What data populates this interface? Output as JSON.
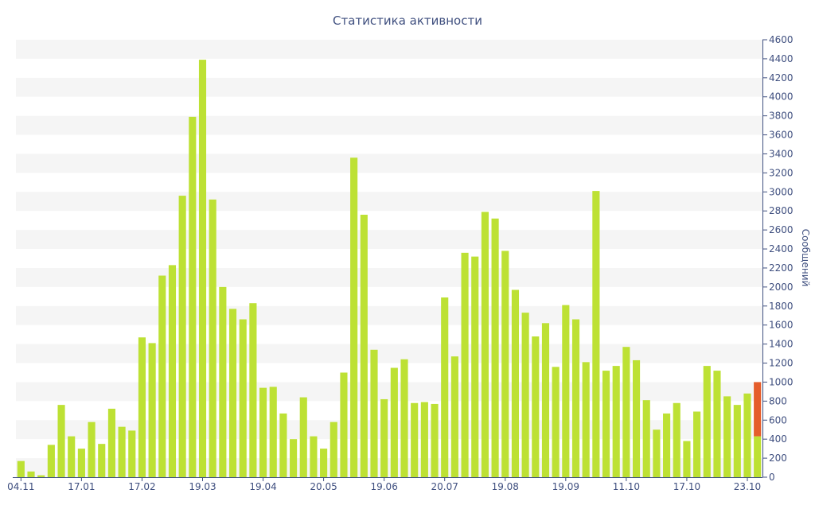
{
  "chart_data": {
    "type": "bar",
    "title": "Статистика активности",
    "ylabel": "Сообщений",
    "xlabel": "",
    "ylim": [
      0,
      4600
    ],
    "y_ticks": [
      0,
      200,
      400,
      600,
      800,
      1000,
      1200,
      1400,
      1600,
      1800,
      2000,
      2200,
      2400,
      2600,
      2800,
      3000,
      3200,
      3400,
      3600,
      3800,
      4000,
      4200,
      4400,
      4600
    ],
    "y_axis_position": "right",
    "grid": "alternating-bands",
    "x_tick_labels": [
      {
        "label": "04.11",
        "index": 0
      },
      {
        "label": "17.01",
        "index": 6
      },
      {
        "label": "17.02",
        "index": 12
      },
      {
        "label": "19.03",
        "index": 18
      },
      {
        "label": "19.04",
        "index": 24
      },
      {
        "label": "20.05",
        "index": 30
      },
      {
        "label": "19.06",
        "index": 36
      },
      {
        "label": "20.07",
        "index": 42
      },
      {
        "label": "19.08",
        "index": 48
      },
      {
        "label": "19.09",
        "index": 54
      },
      {
        "label": "11.10",
        "index": 60
      },
      {
        "label": "17.10",
        "index": 66
      },
      {
        "label": "23.10",
        "index": 72
      }
    ],
    "series": [
      {
        "color": "#bde134",
        "values": [
          170,
          60,
          20,
          340,
          760,
          430,
          300,
          580,
          350,
          720,
          530,
          490,
          1470,
          1410,
          2120,
          2230,
          2960,
          3790,
          4390,
          2920,
          2000,
          1770,
          1660,
          1830,
          940,
          950,
          670,
          400,
          840,
          430,
          300,
          580,
          1100,
          3360,
          2760,
          1340,
          820,
          1150,
          1240,
          780,
          790,
          770,
          1890,
          1270,
          2360,
          2320,
          2790,
          2720,
          2380,
          1970,
          1730,
          1480,
          1620,
          1160,
          1810,
          1660,
          1210,
          3010,
          1120,
          1170,
          1370,
          1230,
          810,
          500,
          670,
          780,
          380,
          690,
          1170,
          1120,
          850,
          760,
          880,
          430
        ]
      },
      {
        "color": "#e55d2b",
        "stacked_on": 0,
        "values": [
          0,
          0,
          0,
          0,
          0,
          0,
          0,
          0,
          0,
          0,
          0,
          0,
          0,
          0,
          0,
          0,
          0,
          0,
          0,
          0,
          0,
          0,
          0,
          0,
          0,
          0,
          0,
          0,
          0,
          0,
          0,
          0,
          0,
          0,
          0,
          0,
          0,
          0,
          0,
          0,
          0,
          0,
          0,
          0,
          0,
          0,
          0,
          0,
          0,
          0,
          0,
          0,
          0,
          0,
          0,
          0,
          0,
          0,
          0,
          0,
          0,
          0,
          0,
          0,
          0,
          0,
          0,
          0,
          0,
          0,
          0,
          0,
          0,
          570
        ]
      }
    ],
    "colors": {
      "axis": "#3f4f7f",
      "band": "#f5f5f5",
      "text": "#3f4f7f"
    }
  }
}
